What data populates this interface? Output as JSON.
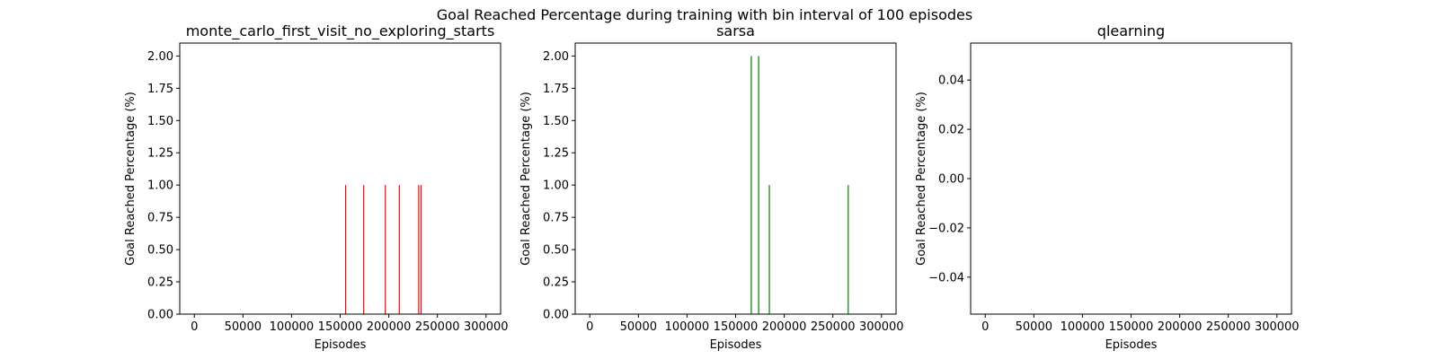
{
  "figure": {
    "suptitle": "Goal Reached Percentage during training with bin interval of 100 episodes"
  },
  "chart_data": [
    {
      "type": "bar",
      "title": "monte_carlo_first_visit_no_exploring_starts",
      "xlabel": "Episodes",
      "ylabel": "Goal Reached Percentage (%)",
      "xlim": [
        -15000,
        315000
      ],
      "ylim": [
        0,
        2.1
      ],
      "xticks": [
        0,
        50000,
        100000,
        150000,
        200000,
        250000,
        300000
      ],
      "xtick_labels": [
        "0",
        "50000",
        "100000",
        "150000",
        "200000",
        "250000",
        "300000"
      ],
      "yticks": [
        0,
        0.25,
        0.5,
        0.75,
        1.0,
        1.25,
        1.5,
        1.75,
        2.0
      ],
      "ytick_labels": [
        "0.00",
        "0.25",
        "0.50",
        "0.75",
        "1.00",
        "1.25",
        "1.50",
        "1.75",
        "2.00"
      ],
      "color": "#ff0000",
      "bar_width": 100,
      "x": [
        155600,
        174200,
        196400,
        210800,
        230800,
        233200
      ],
      "values": [
        1,
        1,
        1,
        1,
        1,
        1
      ]
    },
    {
      "type": "bar",
      "title": "sarsa",
      "xlabel": "Episodes",
      "ylabel": "Goal Reached Percentage (%)",
      "xlim": [
        -15000,
        315000
      ],
      "ylim": [
        0,
        2.1
      ],
      "xticks": [
        0,
        50000,
        100000,
        150000,
        200000,
        250000,
        300000
      ],
      "xtick_labels": [
        "0",
        "50000",
        "100000",
        "150000",
        "200000",
        "250000",
        "300000"
      ],
      "yticks": [
        0,
        0.25,
        0.5,
        0.75,
        1.0,
        1.25,
        1.5,
        1.75,
        2.0
      ],
      "ytick_labels": [
        "0.00",
        "0.25",
        "0.50",
        "0.75",
        "1.00",
        "1.25",
        "1.50",
        "1.75",
        "2.00"
      ],
      "color": "#008000",
      "bar_width": 100,
      "x": [
        166100,
        173700,
        184700,
        265800
      ],
      "values": [
        2,
        2,
        1,
        1
      ]
    },
    {
      "type": "bar",
      "title": "qlearning",
      "xlabel": "Episodes",
      "ylabel": "Goal Reached Percentage (%)",
      "xlim": [
        -15000,
        315000
      ],
      "ylim": [
        -0.055,
        0.055
      ],
      "xticks": [
        0,
        50000,
        100000,
        150000,
        200000,
        250000,
        300000
      ],
      "xtick_labels": [
        "0",
        "50000",
        "100000",
        "150000",
        "200000",
        "250000",
        "300000"
      ],
      "yticks": [
        -0.04,
        -0.02,
        0.0,
        0.02,
        0.04
      ],
      "ytick_labels": [
        "−0.04",
        "−0.02",
        "0.00",
        "0.02",
        "0.04"
      ],
      "color": "#0000ff",
      "bar_width": 100,
      "x": [],
      "values": []
    }
  ]
}
